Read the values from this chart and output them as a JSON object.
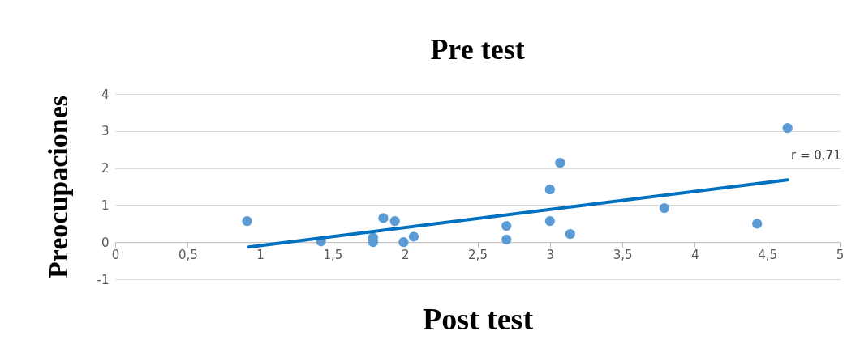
{
  "chart_data": {
    "type": "scatter",
    "title": "Pre test",
    "xlabel": "Post test",
    "ylabel": "Preocupaciones",
    "series": [
      {
        "color": "#5b9bd5",
        "marker": "circle",
        "x": [
          0.91,
          1.42,
          1.78,
          1.78,
          1.85,
          1.93,
          1.99,
          2.06,
          2.7,
          2.7,
          3.0,
          3.0,
          3.07,
          3.14,
          3.79,
          4.43,
          4.64
        ],
        "values": [
          0.57,
          0.02,
          0.13,
          0.0,
          0.65,
          0.57,
          0.0,
          0.15,
          0.44,
          0.07,
          1.42,
          0.57,
          2.14,
          0.22,
          0.92,
          0.5,
          3.08
        ]
      },
      {
        "type": "line",
        "color": "#0070c0",
        "x": [
          0.92,
          4.64
        ],
        "values": [
          -0.13,
          1.68
        ]
      }
    ],
    "xlim": [
      0,
      5
    ],
    "xticks": [
      0,
      {
        "value": 0.5,
        "label": "0,5"
      },
      1,
      {
        "value": 1.5,
        "label": "1,5"
      },
      2,
      {
        "value": 2.5,
        "label": "2,5"
      },
      3,
      {
        "value": 3.5,
        "label": "3,5"
      },
      4,
      {
        "value": 4.5,
        "label": "4,5"
      },
      5
    ],
    "ylim": [
      -1,
      4
    ],
    "yticks": [
      -1,
      0,
      1,
      2,
      3,
      4
    ],
    "grid": "y",
    "annotations": [
      "r = 0,71"
    ]
  }
}
